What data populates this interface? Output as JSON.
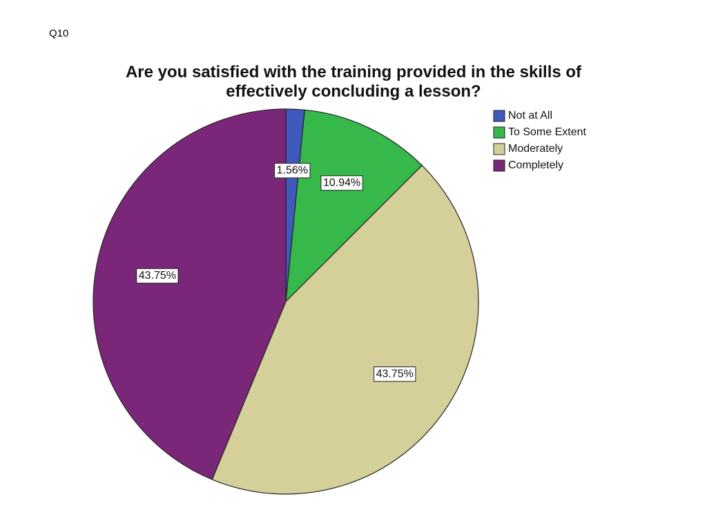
{
  "slide_label": "Q10",
  "chart_data": {
    "type": "pie",
    "title": "Are you satisfied with the training provided in the skills of effectively concluding a lesson?",
    "categories": [
      "Not at All",
      "To Some Extent",
      "Moderately",
      "Completely"
    ],
    "values": [
      1.56,
      10.94,
      43.75,
      43.75
    ],
    "value_labels": [
      "1.56%",
      "10.94%",
      "43.75%",
      "43.75%"
    ],
    "colors": [
      "#3f59bd",
      "#36b84b",
      "#d5d09a",
      "#7b2779"
    ],
    "legend": "top-right"
  }
}
